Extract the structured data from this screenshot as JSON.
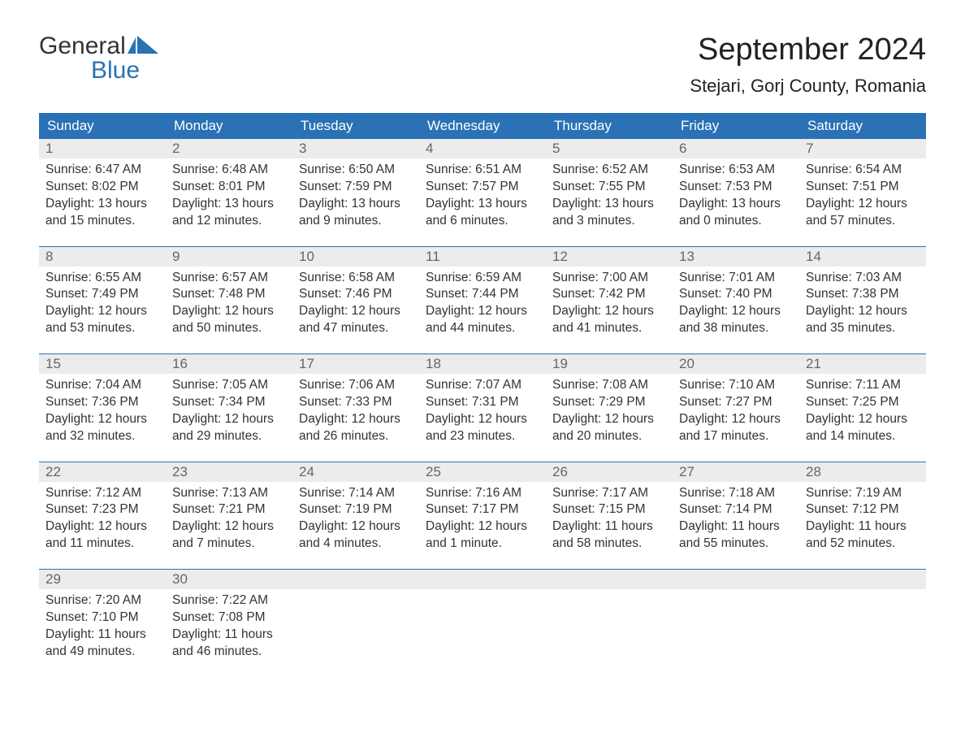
{
  "brand": {
    "line1": "General",
    "line2": "Blue",
    "flag_color": "#2a72b5"
  },
  "header": {
    "month_title": "September 2024",
    "location": "Stejari, Gorj County, Romania"
  },
  "colors": {
    "header_bg": "#2a72b5",
    "header_fg": "#ffffff",
    "daynum_bg": "#ececec",
    "daynum_fg": "#666666",
    "body_fg": "#333333",
    "page_bg": "#ffffff",
    "rule": "#2a72b5"
  },
  "typography": {
    "month_title_pt": 38,
    "location_pt": 22,
    "dayheader_pt": 17,
    "daynum_pt": 17,
    "body_pt": 15.5,
    "logo_pt": 30
  },
  "calendar": {
    "day_headers": [
      "Sunday",
      "Monday",
      "Tuesday",
      "Wednesday",
      "Thursday",
      "Friday",
      "Saturday"
    ],
    "weeks": [
      [
        {
          "n": "1",
          "sunrise": "Sunrise: 6:47 AM",
          "sunset": "Sunset: 8:02 PM",
          "daylight1": "Daylight: 13 hours",
          "daylight2": "and 15 minutes."
        },
        {
          "n": "2",
          "sunrise": "Sunrise: 6:48 AM",
          "sunset": "Sunset: 8:01 PM",
          "daylight1": "Daylight: 13 hours",
          "daylight2": "and 12 minutes."
        },
        {
          "n": "3",
          "sunrise": "Sunrise: 6:50 AM",
          "sunset": "Sunset: 7:59 PM",
          "daylight1": "Daylight: 13 hours",
          "daylight2": "and 9 minutes."
        },
        {
          "n": "4",
          "sunrise": "Sunrise: 6:51 AM",
          "sunset": "Sunset: 7:57 PM",
          "daylight1": "Daylight: 13 hours",
          "daylight2": "and 6 minutes."
        },
        {
          "n": "5",
          "sunrise": "Sunrise: 6:52 AM",
          "sunset": "Sunset: 7:55 PM",
          "daylight1": "Daylight: 13 hours",
          "daylight2": "and 3 minutes."
        },
        {
          "n": "6",
          "sunrise": "Sunrise: 6:53 AM",
          "sunset": "Sunset: 7:53 PM",
          "daylight1": "Daylight: 13 hours",
          "daylight2": "and 0 minutes."
        },
        {
          "n": "7",
          "sunrise": "Sunrise: 6:54 AM",
          "sunset": "Sunset: 7:51 PM",
          "daylight1": "Daylight: 12 hours",
          "daylight2": "and 57 minutes."
        }
      ],
      [
        {
          "n": "8",
          "sunrise": "Sunrise: 6:55 AM",
          "sunset": "Sunset: 7:49 PM",
          "daylight1": "Daylight: 12 hours",
          "daylight2": "and 53 minutes."
        },
        {
          "n": "9",
          "sunrise": "Sunrise: 6:57 AM",
          "sunset": "Sunset: 7:48 PM",
          "daylight1": "Daylight: 12 hours",
          "daylight2": "and 50 minutes."
        },
        {
          "n": "10",
          "sunrise": "Sunrise: 6:58 AM",
          "sunset": "Sunset: 7:46 PM",
          "daylight1": "Daylight: 12 hours",
          "daylight2": "and 47 minutes."
        },
        {
          "n": "11",
          "sunrise": "Sunrise: 6:59 AM",
          "sunset": "Sunset: 7:44 PM",
          "daylight1": "Daylight: 12 hours",
          "daylight2": "and 44 minutes."
        },
        {
          "n": "12",
          "sunrise": "Sunrise: 7:00 AM",
          "sunset": "Sunset: 7:42 PM",
          "daylight1": "Daylight: 12 hours",
          "daylight2": "and 41 minutes."
        },
        {
          "n": "13",
          "sunrise": "Sunrise: 7:01 AM",
          "sunset": "Sunset: 7:40 PM",
          "daylight1": "Daylight: 12 hours",
          "daylight2": "and 38 minutes."
        },
        {
          "n": "14",
          "sunrise": "Sunrise: 7:03 AM",
          "sunset": "Sunset: 7:38 PM",
          "daylight1": "Daylight: 12 hours",
          "daylight2": "and 35 minutes."
        }
      ],
      [
        {
          "n": "15",
          "sunrise": "Sunrise: 7:04 AM",
          "sunset": "Sunset: 7:36 PM",
          "daylight1": "Daylight: 12 hours",
          "daylight2": "and 32 minutes."
        },
        {
          "n": "16",
          "sunrise": "Sunrise: 7:05 AM",
          "sunset": "Sunset: 7:34 PM",
          "daylight1": "Daylight: 12 hours",
          "daylight2": "and 29 minutes."
        },
        {
          "n": "17",
          "sunrise": "Sunrise: 7:06 AM",
          "sunset": "Sunset: 7:33 PM",
          "daylight1": "Daylight: 12 hours",
          "daylight2": "and 26 minutes."
        },
        {
          "n": "18",
          "sunrise": "Sunrise: 7:07 AM",
          "sunset": "Sunset: 7:31 PM",
          "daylight1": "Daylight: 12 hours",
          "daylight2": "and 23 minutes."
        },
        {
          "n": "19",
          "sunrise": "Sunrise: 7:08 AM",
          "sunset": "Sunset: 7:29 PM",
          "daylight1": "Daylight: 12 hours",
          "daylight2": "and 20 minutes."
        },
        {
          "n": "20",
          "sunrise": "Sunrise: 7:10 AM",
          "sunset": "Sunset: 7:27 PM",
          "daylight1": "Daylight: 12 hours",
          "daylight2": "and 17 minutes."
        },
        {
          "n": "21",
          "sunrise": "Sunrise: 7:11 AM",
          "sunset": "Sunset: 7:25 PM",
          "daylight1": "Daylight: 12 hours",
          "daylight2": "and 14 minutes."
        }
      ],
      [
        {
          "n": "22",
          "sunrise": "Sunrise: 7:12 AM",
          "sunset": "Sunset: 7:23 PM",
          "daylight1": "Daylight: 12 hours",
          "daylight2": "and 11 minutes."
        },
        {
          "n": "23",
          "sunrise": "Sunrise: 7:13 AM",
          "sunset": "Sunset: 7:21 PM",
          "daylight1": "Daylight: 12 hours",
          "daylight2": "and 7 minutes."
        },
        {
          "n": "24",
          "sunrise": "Sunrise: 7:14 AM",
          "sunset": "Sunset: 7:19 PM",
          "daylight1": "Daylight: 12 hours",
          "daylight2": "and 4 minutes."
        },
        {
          "n": "25",
          "sunrise": "Sunrise: 7:16 AM",
          "sunset": "Sunset: 7:17 PM",
          "daylight1": "Daylight: 12 hours",
          "daylight2": "and 1 minute."
        },
        {
          "n": "26",
          "sunrise": "Sunrise: 7:17 AM",
          "sunset": "Sunset: 7:15 PM",
          "daylight1": "Daylight: 11 hours",
          "daylight2": "and 58 minutes."
        },
        {
          "n": "27",
          "sunrise": "Sunrise: 7:18 AM",
          "sunset": "Sunset: 7:14 PM",
          "daylight1": "Daylight: 11 hours",
          "daylight2": "and 55 minutes."
        },
        {
          "n": "28",
          "sunrise": "Sunrise: 7:19 AM",
          "sunset": "Sunset: 7:12 PM",
          "daylight1": "Daylight: 11 hours",
          "daylight2": "and 52 minutes."
        }
      ],
      [
        {
          "n": "29",
          "sunrise": "Sunrise: 7:20 AM",
          "sunset": "Sunset: 7:10 PM",
          "daylight1": "Daylight: 11 hours",
          "daylight2": "and 49 minutes."
        },
        {
          "n": "30",
          "sunrise": "Sunrise: 7:22 AM",
          "sunset": "Sunset: 7:08 PM",
          "daylight1": "Daylight: 11 hours",
          "daylight2": "and 46 minutes."
        },
        {
          "empty": true
        },
        {
          "empty": true
        },
        {
          "empty": true
        },
        {
          "empty": true
        },
        {
          "empty": true
        }
      ]
    ]
  }
}
